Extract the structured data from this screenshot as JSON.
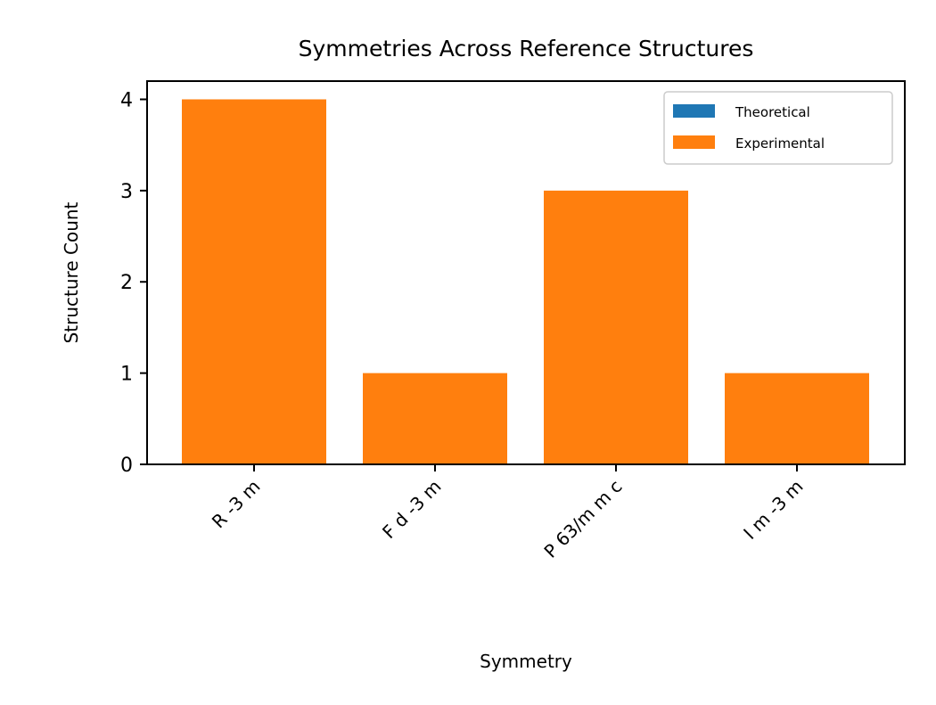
{
  "chart_data": {
    "type": "bar",
    "title": "Symmetries Across Reference Structures",
    "xlabel": "Symmetry",
    "ylabel": "Structure Count",
    "categories": [
      "R -3 m",
      "F d -3 m",
      "P 63/m m c",
      "I m -3 m"
    ],
    "series": [
      {
        "name": "Theoretical",
        "color": "#1f77b4",
        "values": [
          0,
          0,
          0,
          0
        ]
      },
      {
        "name": "Experimental",
        "color": "#ff7f0e",
        "values": [
          4,
          1,
          3,
          1
        ]
      }
    ],
    "stacked": true,
    "ylim": [
      0,
      4.2
    ],
    "yticks": [
      "0",
      "1",
      "2",
      "3",
      "4"
    ],
    "grid": false,
    "legend_position": "top-right"
  }
}
